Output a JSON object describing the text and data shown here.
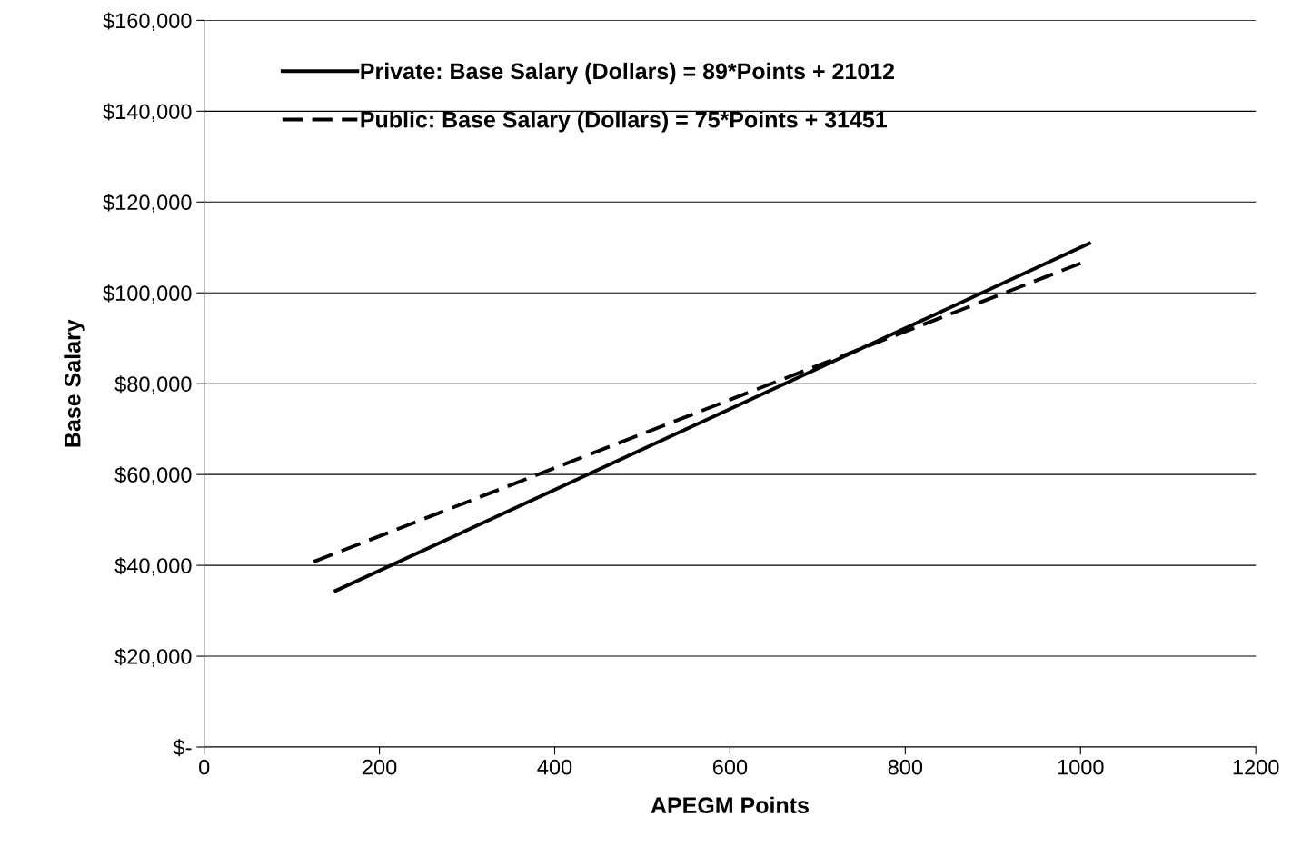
{
  "chart_data": {
    "type": "line",
    "xlabel": "APEGM Points",
    "ylabel": "Base Salary",
    "series": [
      {
        "name": "Private: Base Salary (Dollars) = 89*Points + 21012",
        "color": "#000000",
        "line_style": "solid",
        "x": [
          150,
          1010
        ],
        "values": [
          34400,
          110900
        ]
      },
      {
        "name": "Public: Base Salary (Dollars) = 75*Points + 31451",
        "color": "#000000",
        "line_style": "dashed",
        "x": [
          125,
          1000
        ],
        "values": [
          40800,
          106500
        ]
      }
    ],
    "xlim": [
      0,
      1200
    ],
    "xticks": [
      0,
      200,
      400,
      600,
      800,
      1000,
      1200
    ],
    "ylim": [
      0,
      160000
    ],
    "yticks": [
      {
        "value": 0,
        "label": "$-"
      },
      {
        "value": 20000,
        "label": "$20,000"
      },
      {
        "value": 40000,
        "label": "$40,000"
      },
      {
        "value": 60000,
        "label": "$60,000"
      },
      {
        "value": 80000,
        "label": "$80,000"
      },
      {
        "value": 100000,
        "label": "$100,000"
      },
      {
        "value": 120000,
        "label": "$120,000"
      },
      {
        "value": 140000,
        "label": "$140,000"
      },
      {
        "value": 160000,
        "label": "$160,000"
      }
    ],
    "grid": "y",
    "legend": "top left",
    "marker": "none"
  }
}
